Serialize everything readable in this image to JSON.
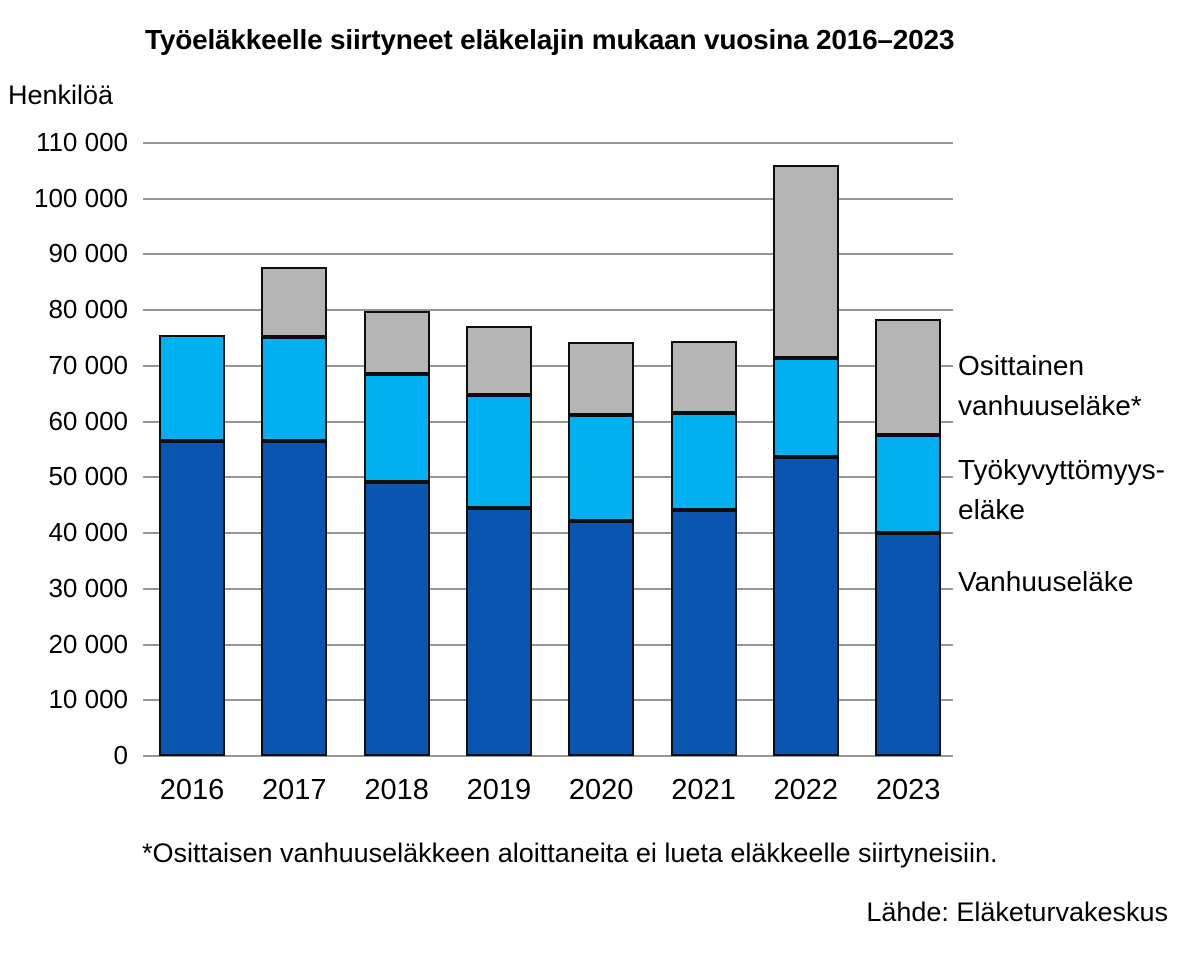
{
  "title": "Työeläkkeelle siirtyneet eläkelajin mukaan vuosina 2016–2023",
  "y_axis_title": "Henkilöä",
  "footnote": "*Osittaisen vanhuuseläkkeen aloittaneita ei lueta eläkkeelle siirtyneisiin.",
  "source": "Lähde: Eläketurvakeskus",
  "legend": {
    "items": [
      {
        "series": "Osittainen vanhuuseläke*",
        "lines": {
          "0": "Osittainen",
          "1": "vanhuuseläke*"
        }
      },
      {
        "series": "Työkyvyttömyyseläke",
        "lines": {
          "0": "Työkyvyttömyys-",
          "1": "eläke"
        }
      },
      {
        "series": "Vanhuuseläke",
        "lines": {
          "0": "Vanhuuseläke"
        }
      }
    ]
  },
  "colors": {
    "vanhuuselake": "#0A55B0",
    "tyokyvyttomyyselake": "#00B0F0",
    "osittainen_vanhuuselake": "#B5B5B5",
    "bar_outline": "#0D0D0D",
    "gridline": "#969696",
    "text": "#000000"
  },
  "chart_data": {
    "type": "bar",
    "stacked": true,
    "title": "Työeläkkeelle siirtyneet eläkelajin mukaan vuosina 2016–2023",
    "xlabel": "",
    "ylabel": "Henkilöä",
    "ylim": [
      0,
      110000
    ],
    "ytick_step": 10000,
    "grid": true,
    "legend_position": "right",
    "categories": [
      "2016",
      "2017",
      "2018",
      "2019",
      "2020",
      "2021",
      "2022",
      "2023"
    ],
    "series": [
      {
        "name": "Vanhuuseläke",
        "color": "#0A55B0",
        "values": [
          56600,
          56500,
          49100,
          44500,
          42100,
          44200,
          53700,
          40000
        ]
      },
      {
        "name": "Työkyvyttömyyseläke",
        "color": "#00B0F0",
        "values": [
          18900,
          18700,
          19500,
          20300,
          19100,
          17400,
          17800,
          17600
        ]
      },
      {
        "name": "Osittainen vanhuuseläke*",
        "color": "#B5B5B5",
        "values": [
          0,
          12500,
          11200,
          12400,
          13100,
          12900,
          34600,
          20800
        ]
      }
    ],
    "totals": [
      75500,
      87700,
      79800,
      77200,
      74300,
      74500,
      106100,
      78400
    ]
  }
}
